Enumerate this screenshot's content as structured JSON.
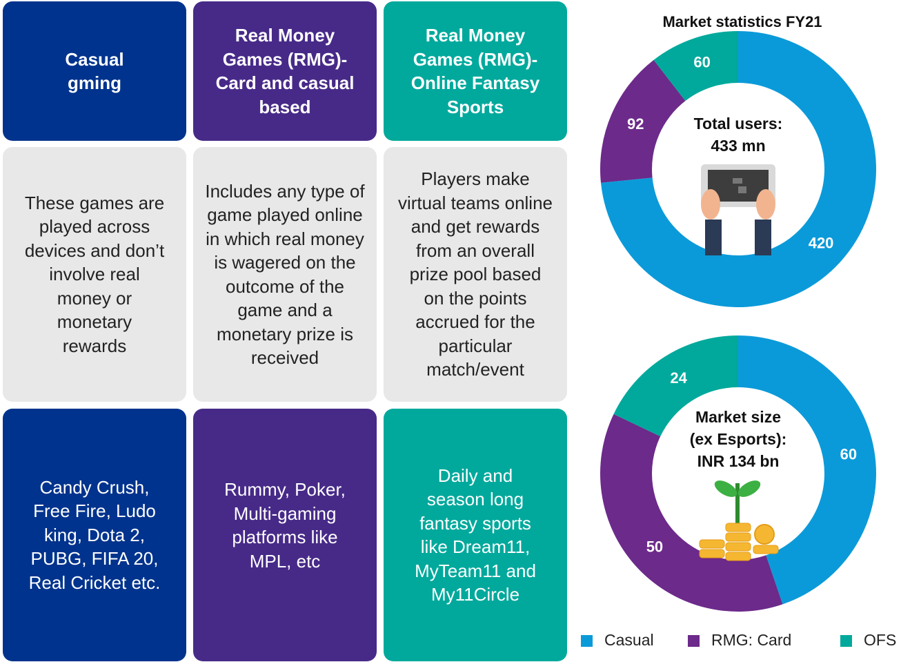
{
  "columns": [
    {
      "header": "Casual gming",
      "description": "These games are played across devices and don’t involve real money or monetary rewards",
      "examples": "Candy Crush, Free Fire, Ludo king, Dota 2, PUBG, FIFA 20, Real Cricket etc."
    },
    {
      "header": "Real Money Games (RMG)-Card and casual based",
      "description": "Includes any type of game played online in which real money is wagered on the outcome of the game and a monetary prize is received",
      "examples": "Rummy, Poker, Multi-gaming platforms like MPL, etc"
    },
    {
      "header": "Real Money Games (RMG)-Online Fantasy Sports",
      "description": "Players make virtual teams online and get rewards from an overall prize pool based on the points accrued for the particular match/event",
      "examples": "Daily and season long fantasy sports like Dream11, MyTeam11 and My11Circle"
    }
  ],
  "chart_data": [
    {
      "type": "pie",
      "title": "Market statistics FY21",
      "center_text": [
        "Total users:",
        "433 mn"
      ],
      "categories": [
        "Casual",
        "RMG: Card",
        "OFS"
      ],
      "colors": [
        "#0b9ad9",
        "#6c2a8a",
        "#00a99c"
      ],
      "values": [
        420,
        92,
        60
      ]
    },
    {
      "type": "pie",
      "center_text": [
        "Market size",
        "(ex Esports):",
        "INR 134 bn"
      ],
      "values": [
        60,
        50,
        24
      ]
    }
  ]
}
